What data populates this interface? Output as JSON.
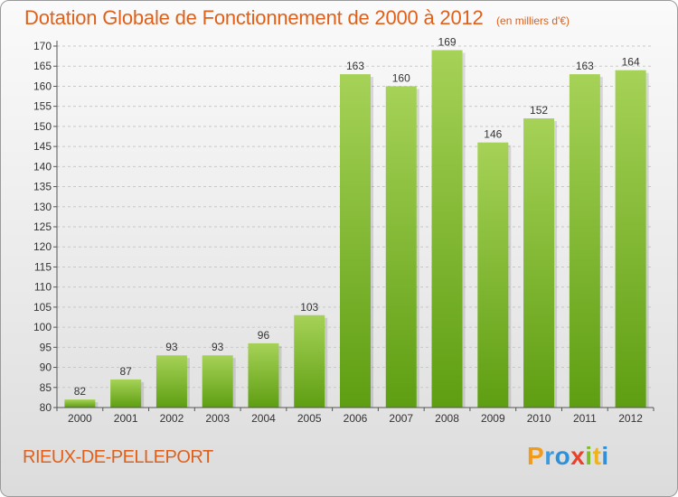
{
  "title": "Dotation Globale de Fonctionnement de 2000 à 2012",
  "subtitle": "(en milliers d'€)",
  "town": "RIEUX-DE-PELLEPORT",
  "brand": [
    "P",
    "r",
    "o",
    "x",
    "i",
    "t",
    "i"
  ],
  "colors": {
    "title": "#e0601a",
    "bar_top": "#a6d257",
    "bar_bottom": "#5e9e12"
  },
  "chart_data": {
    "type": "bar",
    "categories": [
      "2000",
      "2001",
      "2002",
      "2003",
      "2004",
      "2005",
      "2006",
      "2007",
      "2008",
      "2009",
      "2010",
      "2011",
      "2012"
    ],
    "values": [
      82,
      87,
      93,
      93,
      96,
      103,
      163,
      160,
      169,
      146,
      152,
      163,
      164
    ],
    "ylim": [
      80,
      170
    ],
    "yticks": [
      80,
      85,
      90,
      95,
      100,
      105,
      110,
      115,
      120,
      125,
      130,
      135,
      140,
      145,
      150,
      155,
      160,
      165,
      170
    ],
    "grid": true,
    "title": "Dotation Globale de Fonctionnement de 2000 à 2012",
    "subtitle": "(en milliers d'€)"
  }
}
